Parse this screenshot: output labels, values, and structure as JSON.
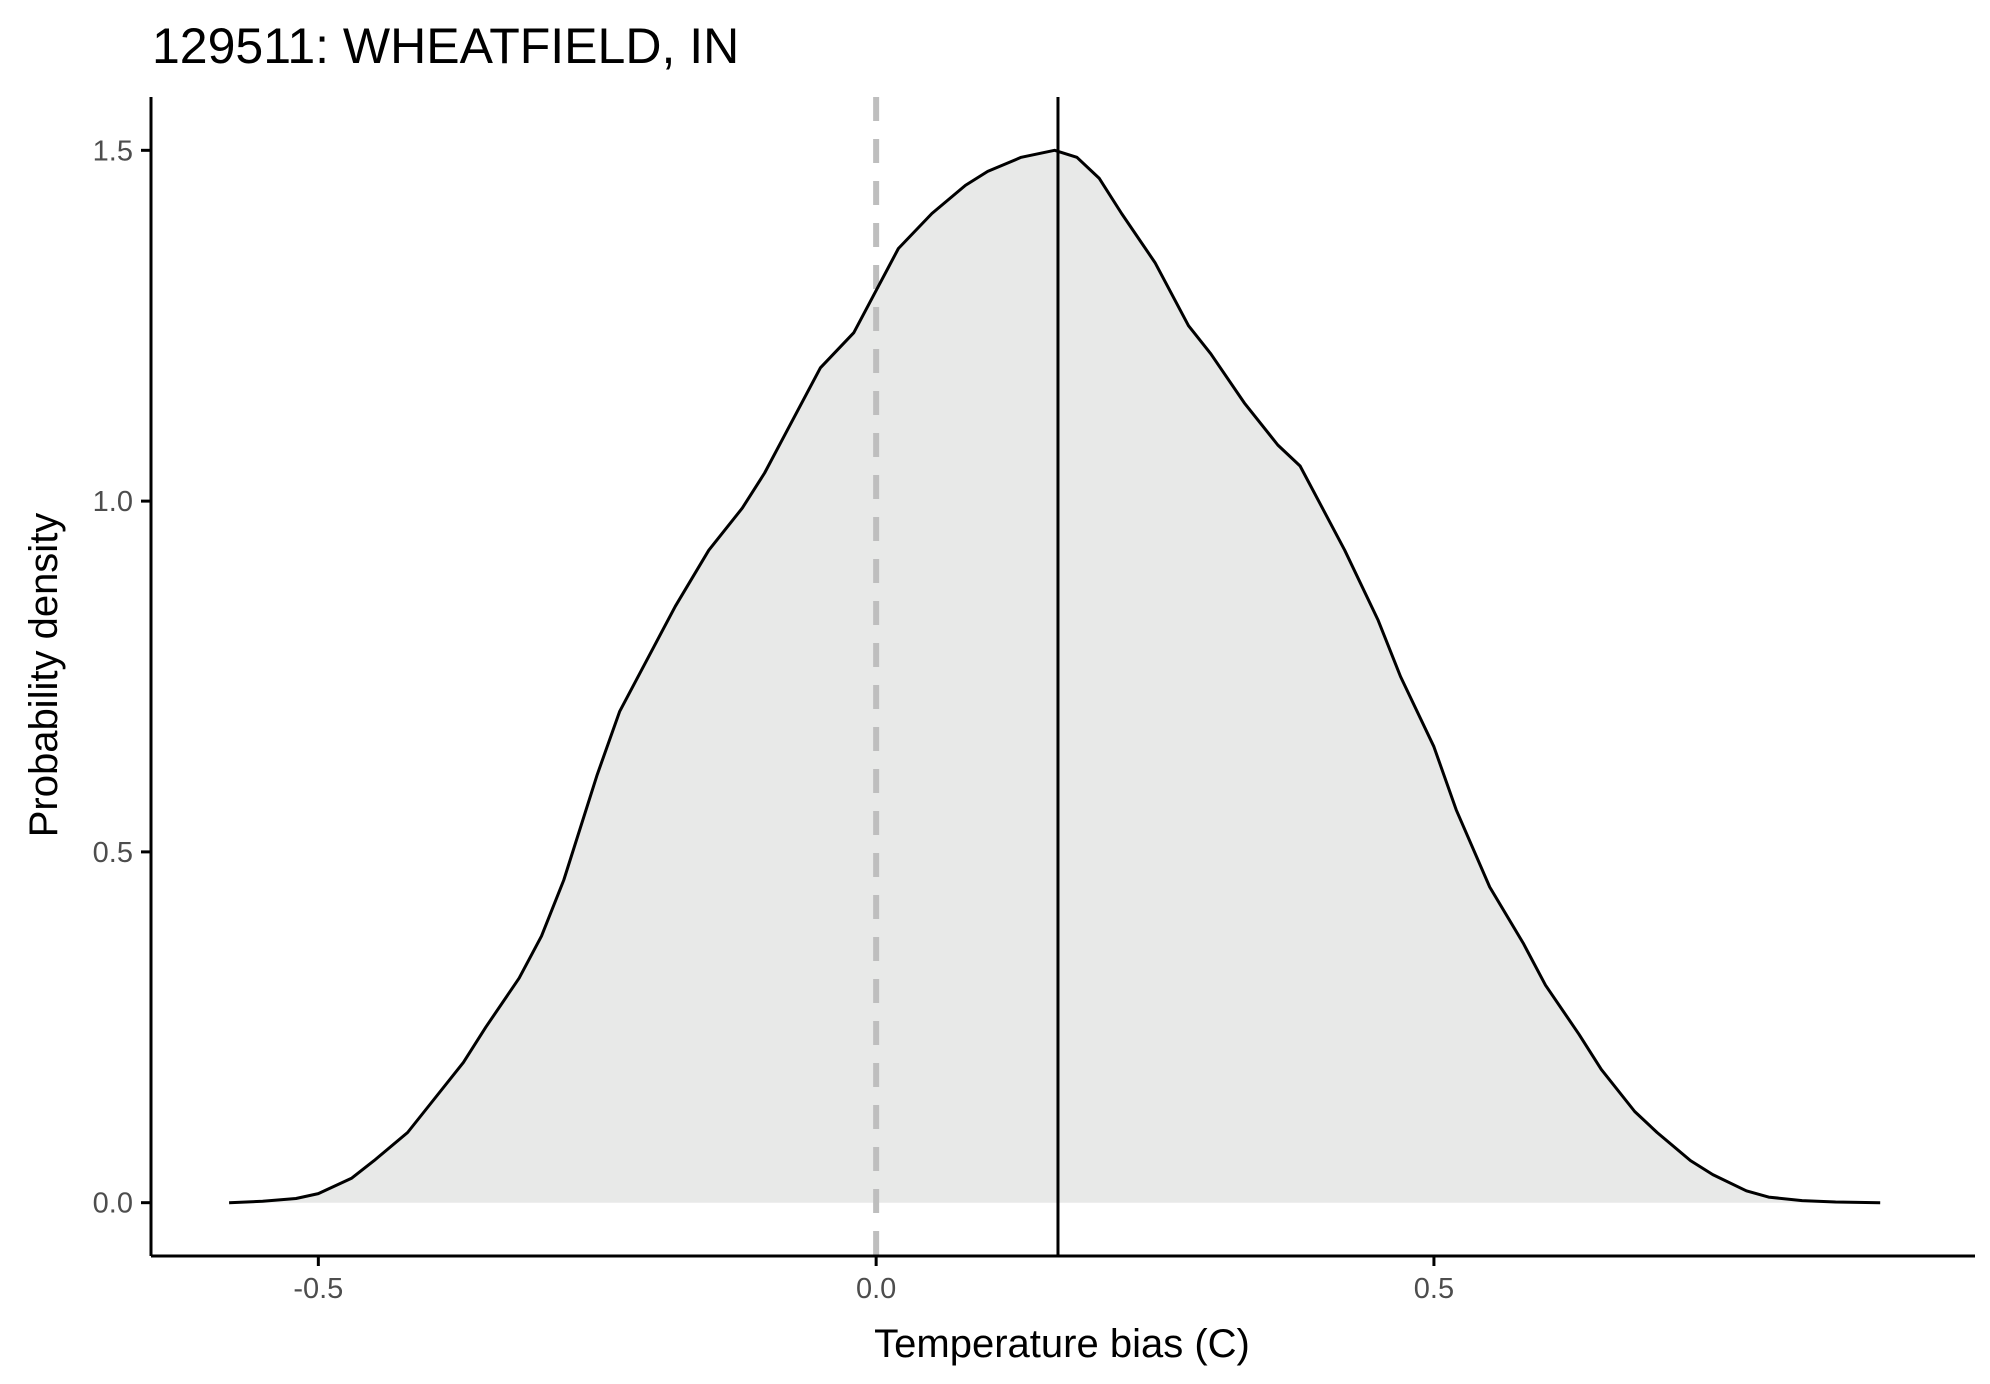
{
  "chart_data": {
    "type": "area",
    "title": "129511: WHEATFIELD, IN",
    "xlabel": "Temperature bias (C)",
    "ylabel": "Probability density",
    "xlim": [
      -0.65,
      0.985
    ],
    "ylim": [
      -0.076,
      1.576
    ],
    "x_ticks": [
      -0.5,
      0.0,
      0.5
    ],
    "x_tick_labels": [
      "-0.5",
      "0.0",
      "0.5"
    ],
    "y_ticks": [
      0.0,
      0.5,
      1.0,
      1.5
    ],
    "y_tick_labels": [
      "0.0",
      "0.5",
      "1.0",
      "1.5"
    ],
    "grid": false,
    "legend": "none",
    "series": [
      {
        "x": [
          -0.58,
          -0.55,
          -0.52,
          -0.5,
          -0.47,
          -0.45,
          -0.42,
          -0.4,
          -0.37,
          -0.35,
          -0.32,
          -0.3,
          -0.28,
          -0.25,
          -0.23,
          -0.2,
          -0.18,
          -0.15,
          -0.12,
          -0.1,
          -0.08,
          -0.05,
          -0.02,
          0.0,
          0.02,
          0.05,
          0.08,
          0.1,
          0.13,
          0.16,
          0.18,
          0.2,
          0.22,
          0.25,
          0.28,
          0.3,
          0.33,
          0.36,
          0.38,
          0.4,
          0.42,
          0.45,
          0.47,
          0.5,
          0.52,
          0.55,
          0.58,
          0.6,
          0.63,
          0.65,
          0.68,
          0.7,
          0.73,
          0.75,
          0.78,
          0.8,
          0.83,
          0.86,
          0.9
        ],
        "y": [
          0.0,
          0.002,
          0.006,
          0.013,
          0.035,
          0.06,
          0.1,
          0.14,
          0.2,
          0.25,
          0.32,
          0.38,
          0.46,
          0.61,
          0.7,
          0.79,
          0.85,
          0.93,
          0.99,
          1.04,
          1.1,
          1.19,
          1.24,
          1.3,
          1.36,
          1.41,
          1.45,
          1.47,
          1.49,
          1.5,
          1.49,
          1.46,
          1.41,
          1.34,
          1.25,
          1.21,
          1.14,
          1.08,
          1.05,
          0.99,
          0.93,
          0.83,
          0.75,
          0.65,
          0.56,
          0.45,
          0.37,
          0.31,
          0.24,
          0.19,
          0.13,
          0.1,
          0.06,
          0.04,
          0.017,
          0.008,
          0.003,
          0.001,
          0.0
        ]
      }
    ],
    "reference_lines": [
      {
        "axis": "x",
        "value": 0.0,
        "style": "dashed",
        "color": "#bebebe"
      },
      {
        "axis": "x",
        "value": 0.163,
        "style": "solid",
        "color": "#000000"
      }
    ],
    "colors": {
      "fill": "#e8e9e8",
      "line": "#000000",
      "axis": "#000000",
      "tick_text": "#4d4d4d"
    }
  }
}
